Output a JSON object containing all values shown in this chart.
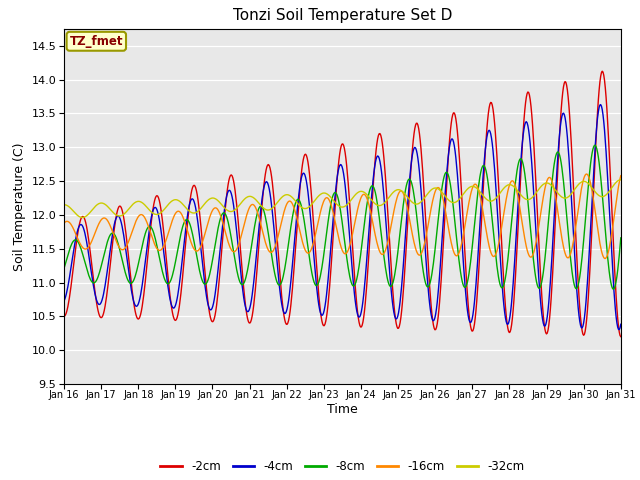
{
  "title": "Tonzi Soil Temperature Set D",
  "xlabel": "Time",
  "ylabel": "Soil Temperature (C)",
  "ylim": [
    9.5,
    14.75
  ],
  "xlim": [
    0,
    360
  ],
  "annotation_text": "TZ_fmet",
  "plot_bg_color": "#e8e8e8",
  "fig_bg_color": "#ffffff",
  "series_colors": {
    "-2cm": "#dd0000",
    "-4cm": "#0000cc",
    "-8cm": "#00aa00",
    "-16cm": "#ff8800",
    "-32cm": "#cccc00"
  },
  "x_tick_labels": [
    "Jan 16",
    "Jan 17",
    "Jan 18",
    "Jan 19",
    "Jan 20",
    "Jan 21",
    "Jan 22",
    "Jan 23",
    "Jan 24",
    "Jan 25",
    "Jan 26",
    "Jan 27",
    "Jan 28",
    "Jan 29",
    "Jan 30",
    "Jan 31"
  ],
  "x_tick_positions": [
    0,
    24,
    48,
    72,
    96,
    120,
    144,
    168,
    192,
    216,
    240,
    264,
    288,
    312,
    336,
    360
  ],
  "yticks": [
    9.5,
    10.0,
    10.5,
    11.0,
    11.5,
    12.0,
    12.5,
    13.0,
    13.5,
    14.0,
    14.5
  ]
}
